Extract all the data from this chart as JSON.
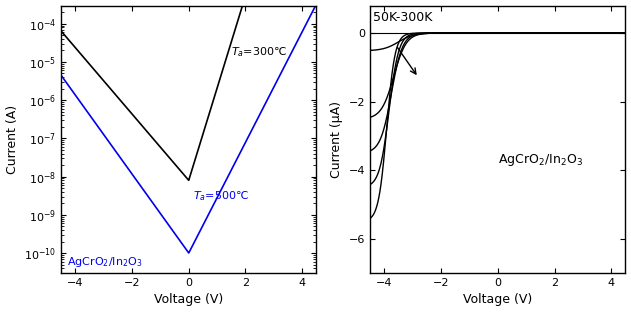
{
  "left_xlim": [
    -4.5,
    4.5
  ],
  "left_ylim": [
    3e-11,
    0.0003
  ],
  "left_xlabel": "Voltage (V)",
  "left_ylabel": "Current (A)",
  "right_xlim": [
    -4.5,
    4.5
  ],
  "right_ylim": [
    -7,
    0.8
  ],
  "right_xlabel": "Voltage (V)",
  "right_ylabel": "Current (μA)",
  "right_label": "50K-300K",
  "color_black": "#000000",
  "color_blue": "#0000ee",
  "bg_color": "#ffffff"
}
